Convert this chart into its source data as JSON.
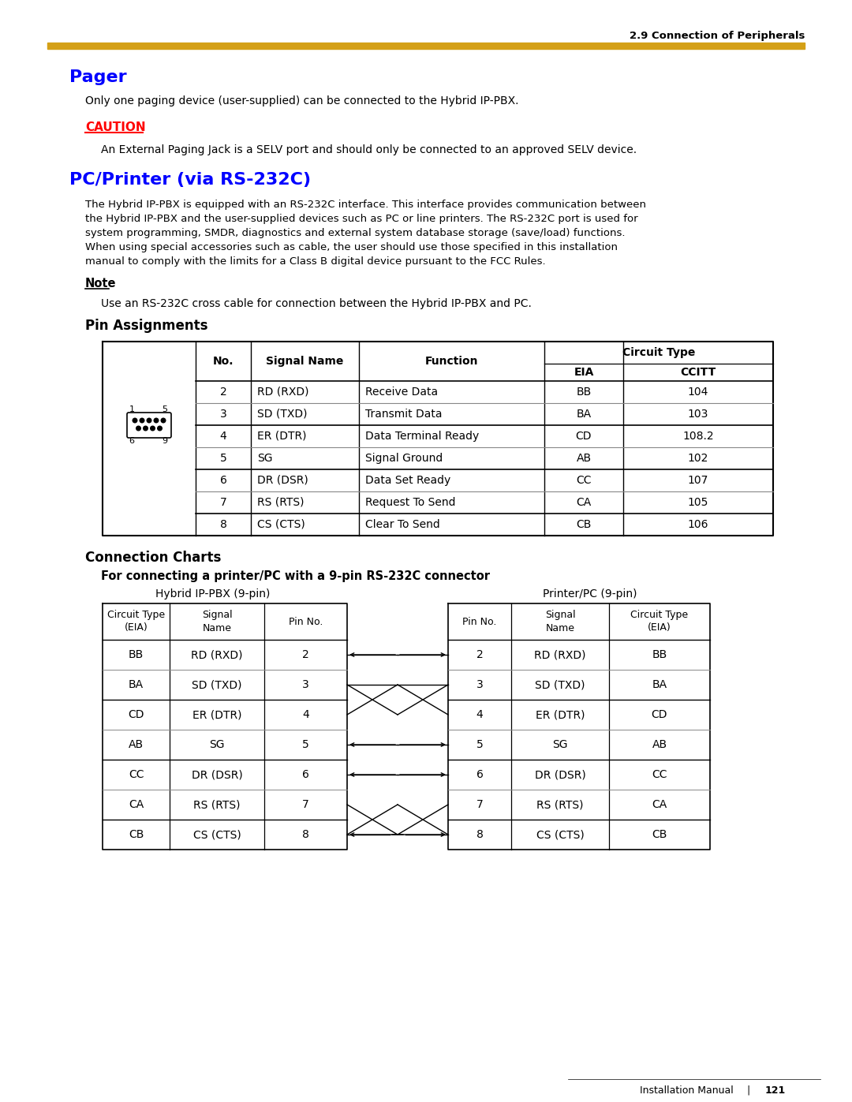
{
  "page_header": "2.9 Connection of Peripherals",
  "header_bar_color": "#D4A017",
  "pager_title": "Pager",
  "pager_title_color": "#0000FF",
  "pager_text": "Only one paging device (user-supplied) can be connected to the Hybrid IP-PBX.",
  "caution_label": "CAUTION",
  "caution_label_color": "#FF0000",
  "caution_text": "An External Paging Jack is a SELV port and should only be connected to an approved SELV device.",
  "pc_title": "PC/Printer (via RS-232C)",
  "pc_title_color": "#0000FF",
  "pc_text1": "The Hybrid IP-PBX is equipped with an RS-232C interface. This interface provides communication between",
  "pc_text2": "the Hybrid IP-PBX and the user-supplied devices such as PC or line printers. The RS-232C port is used for",
  "pc_text3": "system programming, SMDR, diagnostics and external system database storage (save/load) functions.",
  "pc_text4": "When using special accessories such as cable, the user should use those specified in this installation",
  "pc_text5": "manual to comply with the limits for a Class B digital device pursuant to the FCC Rules.",
  "note_label": "Note",
  "note_text": "Use an RS-232C cross cable for connection between the Hybrid IP-PBX and PC.",
  "pin_assignments_title": "Pin Assignments",
  "pin_table_rows": [
    [
      "2",
      "RD (RXD)",
      "Receive Data",
      "BB",
      "104"
    ],
    [
      "3",
      "SD (TXD)",
      "Transmit Data",
      "BA",
      "103"
    ],
    [
      "4",
      "ER (DTR)",
      "Data Terminal Ready",
      "CD",
      "108.2"
    ],
    [
      "5",
      "SG",
      "Signal Ground",
      "AB",
      "102"
    ],
    [
      "6",
      "DR (DSR)",
      "Data Set Ready",
      "CC",
      "107"
    ],
    [
      "7",
      "RS (RTS)",
      "Request To Send",
      "CA",
      "105"
    ],
    [
      "8",
      "CS (CTS)",
      "Clear To Send",
      "CB",
      "106"
    ]
  ],
  "connection_charts_title": "Connection Charts",
  "connection_subtitle": "For connecting a printer/PC with a 9-pin RS-232C connector",
  "left_table_title": "Hybrid IP-PBX (9-pin)",
  "right_table_title": "Printer/PC (9-pin)",
  "conn_rows": [
    [
      "BB",
      "RD (RXD)",
      "2",
      "2",
      "RD (RXD)",
      "BB"
    ],
    [
      "BA",
      "SD (TXD)",
      "3",
      "3",
      "SD (TXD)",
      "BA"
    ],
    [
      "CD",
      "ER (DTR)",
      "4",
      "4",
      "ER (DTR)",
      "CD"
    ],
    [
      "AB",
      "SG",
      "5",
      "5",
      "SG",
      "AB"
    ],
    [
      "CC",
      "DR (DSR)",
      "6",
      "6",
      "DR (DSR)",
      "CC"
    ],
    [
      "CA",
      "RS (RTS)",
      "7",
      "7",
      "RS (RTS)",
      "CA"
    ],
    [
      "CB",
      "CS (CTS)",
      "8",
      "8",
      "CS (CTS)",
      "CB"
    ]
  ],
  "footer_text": "Installation Manual",
  "footer_page": "121",
  "bg_color": "#FFFFFF",
  "text_color": "#000000"
}
